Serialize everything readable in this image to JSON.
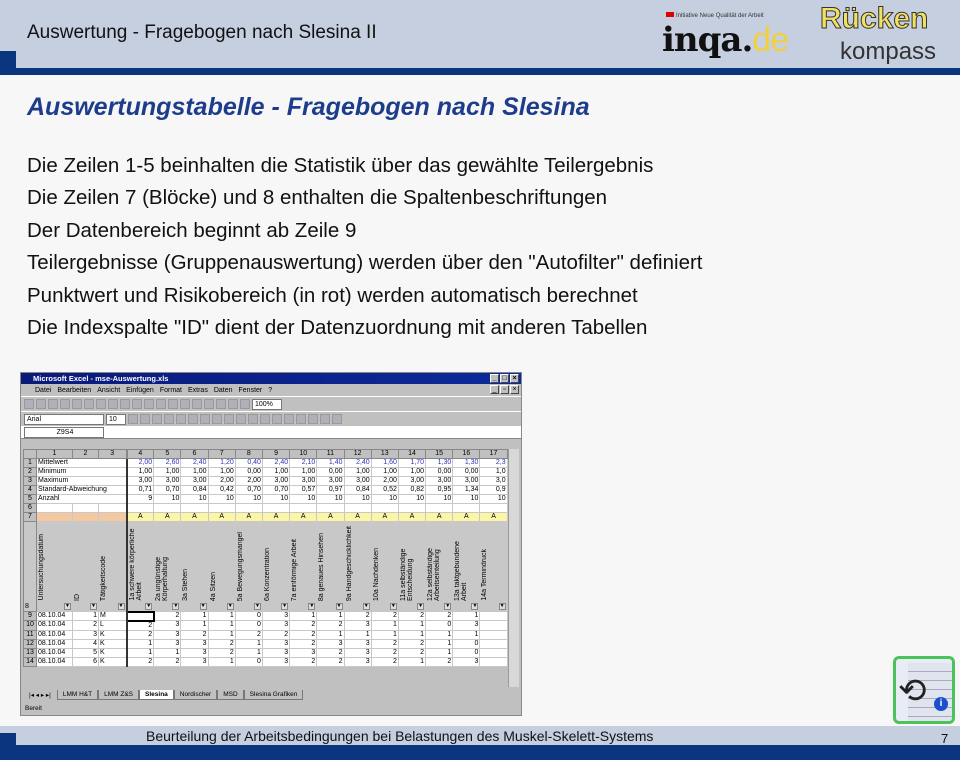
{
  "header": {
    "title": "Auswertung - Fragebogen nach Slesina II",
    "logo": {
      "tagline": "Initiative Neue Qualität der Arbeit",
      "inqa": "inqa.",
      "de": "de",
      "ruecken": "Rücken",
      "kompass": "kompass"
    }
  },
  "slide": {
    "title": "Auswertungstabelle - Fragebogen nach Slesina",
    "lines": [
      "Die Zeilen 1-5 beinhalten die Statistik über das gewählte Teilergebnis",
      "Die Zeilen 7 (Blöcke) und 8 enthalten die Spaltenbeschriftungen",
      "Der Datenbereich beginnt ab Zeile 9",
      "Teilergebnisse (Gruppenauswertung) werden über den \"Autofilter\" definiert",
      "Punktwert und Risikobereich (in rot) werden automatisch berechnet",
      "Die Indexspalte \"ID\" dient der Datenzuordnung mit anderen Tabellen"
    ]
  },
  "footer": {
    "text": "Beurteilung der Arbeitsbedingungen bei Belastungen des Muskel-Skelett-Systems",
    "page": "7"
  },
  "excel": {
    "title": "Microsoft Excel - mse-Auswertung.xls",
    "menu": [
      "Datei",
      "Bearbeiten",
      "Ansicht",
      "Einfügen",
      "Format",
      "Extras",
      "Daten",
      "Fenster",
      "?"
    ],
    "font": "Arial",
    "font_size": "10",
    "zoom": "100%",
    "name_box": "Z9S4",
    "col_headers": [
      "1",
      "2",
      "3",
      "4",
      "5",
      "6",
      "7",
      "8",
      "9",
      "10",
      "11",
      "12",
      "13",
      "14",
      "15",
      "16",
      "17"
    ],
    "stats": [
      {
        "row": "1",
        "label": "Mittelwert",
        "values": [
          "2,00",
          "2,60",
          "2,40",
          "1,20",
          "0,40",
          "2,40",
          "2,10",
          "1,40",
          "2,40",
          "1,60",
          "1,70",
          "1,30",
          "1,30",
          "2,3"
        ]
      },
      {
        "row": "2",
        "label": "Minimum",
        "values": [
          "1,00",
          "1,00",
          "1,00",
          "1,00",
          "0,00",
          "1,00",
          "1,00",
          "0,00",
          "1,00",
          "1,00",
          "1,00",
          "0,00",
          "0,00",
          "1,0"
        ]
      },
      {
        "row": "3",
        "label": "Maximum",
        "values": [
          "3,00",
          "3,00",
          "3,00",
          "2,00",
          "2,00",
          "3,00",
          "3,00",
          "3,00",
          "3,00",
          "2,00",
          "3,00",
          "3,00",
          "3,00",
          "3,0"
        ]
      },
      {
        "row": "4",
        "label": "Standard-Abweichung",
        "values": [
          "0,71",
          "0,70",
          "0,84",
          "0,42",
          "0,70",
          "0,70",
          "0,57",
          "0,97",
          "0,84",
          "0,52",
          "0,82",
          "0,95",
          "1,34",
          "0,9"
        ]
      },
      {
        "row": "5",
        "label": "Anzahl",
        "values": [
          "9",
          "10",
          "10",
          "10",
          "10",
          "10",
          "10",
          "10",
          "10",
          "10",
          "10",
          "10",
          "10",
          "10"
        ]
      }
    ],
    "block_row": {
      "row": "7",
      "value": "A"
    },
    "header_row": {
      "row": "8",
      "labels": [
        "Untersuchungsdatum",
        "ID",
        "Tätigkeitscode",
        "1a schwere körperliche Arbeit",
        "2a ungünstige Körperhaltung",
        "3a Stehen",
        "4a Sitzen",
        "5a Bewegungsmangel",
        "6a Konzentration",
        "7a einförmige Arbeit",
        "8a genaues Hinsehen",
        "9a Handgeschicklichkeit",
        "10a Nachdenken",
        "11a selbständige Entscheidung",
        "12a selbständige Arbeitseinteilung",
        "13a taktgebundene Arbeit",
        "14a Termindruck"
      ]
    },
    "data_rows": [
      {
        "row": "9",
        "date": "08.10.04",
        "id": "1",
        "code": "M",
        "values": [
          "",
          "2",
          "1",
          "1",
          "0",
          "3",
          "1",
          "1",
          "2",
          "2",
          "2",
          "2",
          "1",
          ""
        ]
      },
      {
        "row": "10",
        "date": "08.10.04",
        "id": "2",
        "code": "L",
        "values": [
          "2",
          "3",
          "1",
          "1",
          "0",
          "3",
          "2",
          "2",
          "3",
          "1",
          "1",
          "0",
          "3",
          ""
        ]
      },
      {
        "row": "11",
        "date": "08.10.04",
        "id": "3",
        "code": "K",
        "values": [
          "2",
          "3",
          "2",
          "1",
          "2",
          "2",
          "2",
          "1",
          "1",
          "1",
          "1",
          "1",
          "1",
          ""
        ]
      },
      {
        "row": "12",
        "date": "08.10.04",
        "id": "4",
        "code": "K",
        "values": [
          "1",
          "3",
          "3",
          "2",
          "1",
          "3",
          "2",
          "3",
          "3",
          "2",
          "2",
          "1",
          "0",
          ""
        ]
      },
      {
        "row": "13",
        "date": "08.10.04",
        "id": "5",
        "code": "K",
        "values": [
          "1",
          "1",
          "3",
          "2",
          "1",
          "3",
          "3",
          "2",
          "3",
          "2",
          "2",
          "1",
          "0",
          ""
        ]
      },
      {
        "row": "14",
        "date": "08.10.04",
        "id": "6",
        "code": "K",
        "values": [
          "2",
          "2",
          "3",
          "1",
          "0",
          "3",
          "2",
          "2",
          "3",
          "2",
          "1",
          "2",
          "3",
          ""
        ]
      }
    ],
    "sheet_tabs": [
      "LMM H&T",
      "LMM Z&S",
      "Slesina",
      "Nordischer",
      "MSD",
      "Slesina Grafiken"
    ],
    "active_tab": "Slesina",
    "status": "Bereit"
  }
}
